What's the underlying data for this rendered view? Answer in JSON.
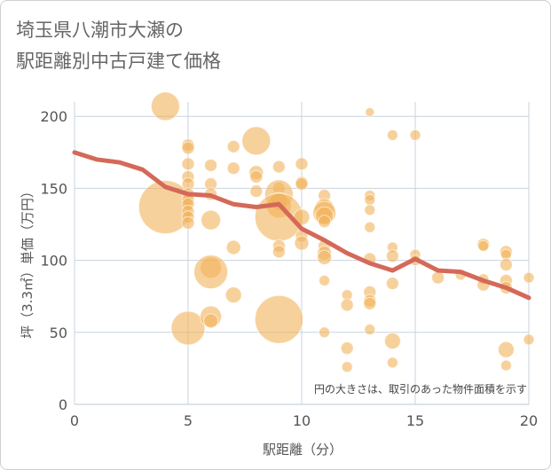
{
  "chart_data": {
    "type": "scatter",
    "title_lines": [
      "埼玉県八潮市大瀬の",
      "駅距離別中古戸建て価格"
    ],
    "xlabel": "駅距離（分）",
    "ylabel": "坪（3.3㎡）単価（万円）",
    "xlim": [
      0,
      20
    ],
    "ylim": [
      0,
      210
    ],
    "x_ticks": [
      0,
      5,
      10,
      15,
      20
    ],
    "y_ticks": [
      0,
      50,
      100,
      150,
      200
    ],
    "grid": true,
    "note": "円の大きさは、取引のあった物件面積を示す",
    "colors": {
      "bubble": "#f2b35a",
      "line": "#d4695a",
      "grid": "#c8d3de"
    },
    "points": [
      {
        "x": 4,
        "y": 207,
        "s": 16
      },
      {
        "x": 4,
        "y": 137,
        "s": 30
      },
      {
        "x": 5,
        "y": 180,
        "s": 7
      },
      {
        "x": 5,
        "y": 178,
        "s": 7
      },
      {
        "x": 5,
        "y": 167,
        "s": 7
      },
      {
        "x": 5,
        "y": 158,
        "s": 7
      },
      {
        "x": 5,
        "y": 153,
        "s": 7
      },
      {
        "x": 5,
        "y": 146,
        "s": 7
      },
      {
        "x": 5,
        "y": 142,
        "s": 7
      },
      {
        "x": 5,
        "y": 139,
        "s": 7
      },
      {
        "x": 5,
        "y": 134,
        "s": 7
      },
      {
        "x": 5,
        "y": 130,
        "s": 7
      },
      {
        "x": 5,
        "y": 126,
        "s": 7
      },
      {
        "x": 5,
        "y": 53,
        "s": 19
      },
      {
        "x": 6,
        "y": 166,
        "s": 7
      },
      {
        "x": 6,
        "y": 153,
        "s": 7
      },
      {
        "x": 6,
        "y": 146,
        "s": 7
      },
      {
        "x": 6,
        "y": 128,
        "s": 11
      },
      {
        "x": 6,
        "y": 95,
        "s": 12
      },
      {
        "x": 6,
        "y": 92,
        "s": 19
      },
      {
        "x": 6,
        "y": 61,
        "s": 12
      },
      {
        "x": 6,
        "y": 58,
        "s": 8
      },
      {
        "x": 7,
        "y": 179,
        "s": 7
      },
      {
        "x": 7,
        "y": 164,
        "s": 7
      },
      {
        "x": 7,
        "y": 109,
        "s": 8
      },
      {
        "x": 7,
        "y": 76,
        "s": 9
      },
      {
        "x": 8,
        "y": 183,
        "s": 16
      },
      {
        "x": 8,
        "y": 161,
        "s": 8
      },
      {
        "x": 8,
        "y": 158,
        "s": 7
      },
      {
        "x": 8,
        "y": 148,
        "s": 7
      },
      {
        "x": 9,
        "y": 165,
        "s": 7
      },
      {
        "x": 9,
        "y": 150,
        "s": 7
      },
      {
        "x": 9,
        "y": 146,
        "s": 16
      },
      {
        "x": 9,
        "y": 141,
        "s": 10
      },
      {
        "x": 9,
        "y": 138,
        "s": 14
      },
      {
        "x": 9,
        "y": 130,
        "s": 27
      },
      {
        "x": 9,
        "y": 110,
        "s": 7
      },
      {
        "x": 9,
        "y": 106,
        "s": 7
      },
      {
        "x": 9,
        "y": 59,
        "s": 27
      },
      {
        "x": 10,
        "y": 167,
        "s": 7
      },
      {
        "x": 10,
        "y": 154,
        "s": 7
      },
      {
        "x": 10,
        "y": 153,
        "s": 7
      },
      {
        "x": 10,
        "y": 130,
        "s": 9
      },
      {
        "x": 10,
        "y": 117,
        "s": 7
      },
      {
        "x": 10,
        "y": 112,
        "s": 8
      },
      {
        "x": 11,
        "y": 145,
        "s": 7
      },
      {
        "x": 11,
        "y": 136,
        "s": 11
      },
      {
        "x": 11,
        "y": 133,
        "s": 13
      },
      {
        "x": 11,
        "y": 131,
        "s": 10
      },
      {
        "x": 11,
        "y": 127,
        "s": 7
      },
      {
        "x": 11,
        "y": 110,
        "s": 7
      },
      {
        "x": 11,
        "y": 105,
        "s": 8
      },
      {
        "x": 11,
        "y": 102,
        "s": 8
      },
      {
        "x": 11,
        "y": 86,
        "s": 6
      },
      {
        "x": 11,
        "y": 50,
        "s": 6
      },
      {
        "x": 12,
        "y": 76,
        "s": 6
      },
      {
        "x": 12,
        "y": 69,
        "s": 7
      },
      {
        "x": 12,
        "y": 39,
        "s": 7
      },
      {
        "x": 12,
        "y": 26,
        "s": 6
      },
      {
        "x": 13,
        "y": 203,
        "s": 5
      },
      {
        "x": 13,
        "y": 145,
        "s": 6
      },
      {
        "x": 13,
        "y": 142,
        "s": 6
      },
      {
        "x": 13,
        "y": 135,
        "s": 6
      },
      {
        "x": 13,
        "y": 123,
        "s": 6
      },
      {
        "x": 13,
        "y": 101,
        "s": 7
      },
      {
        "x": 13,
        "y": 78,
        "s": 7
      },
      {
        "x": 13,
        "y": 72,
        "s": 7
      },
      {
        "x": 13,
        "y": 70,
        "s": 7
      },
      {
        "x": 13,
        "y": 52,
        "s": 6
      },
      {
        "x": 14,
        "y": 187,
        "s": 6
      },
      {
        "x": 14,
        "y": 109,
        "s": 6
      },
      {
        "x": 14,
        "y": 103,
        "s": 7
      },
      {
        "x": 14,
        "y": 84,
        "s": 7
      },
      {
        "x": 14,
        "y": 44,
        "s": 9
      },
      {
        "x": 14,
        "y": 29,
        "s": 6
      },
      {
        "x": 15,
        "y": 187,
        "s": 6
      },
      {
        "x": 15,
        "y": 104,
        "s": 6
      },
      {
        "x": 15,
        "y": 100,
        "s": 6
      },
      {
        "x": 16,
        "y": 88,
        "s": 7
      },
      {
        "x": 17,
        "y": 90,
        "s": 6
      },
      {
        "x": 18,
        "y": 111,
        "s": 7
      },
      {
        "x": 18,
        "y": 110,
        "s": 6
      },
      {
        "x": 18,
        "y": 87,
        "s": 6
      },
      {
        "x": 18,
        "y": 83,
        "s": 7
      },
      {
        "x": 19,
        "y": 106,
        "s": 7
      },
      {
        "x": 19,
        "y": 104,
        "s": 6
      },
      {
        "x": 19,
        "y": 97,
        "s": 7
      },
      {
        "x": 19,
        "y": 86,
        "s": 7
      },
      {
        "x": 19,
        "y": 81,
        "s": 7
      },
      {
        "x": 19,
        "y": 38,
        "s": 9
      },
      {
        "x": 19,
        "y": 27,
        "s": 6
      },
      {
        "x": 20,
        "y": 88,
        "s": 6
      },
      {
        "x": 20,
        "y": 45,
        "s": 6
      }
    ],
    "trend": {
      "x": [
        0,
        1,
        2,
        3,
        4,
        5,
        6,
        7,
        8,
        9,
        10,
        11,
        12,
        13,
        14,
        15,
        16,
        17,
        18,
        19,
        20
      ],
      "y": [
        175,
        170,
        168,
        163,
        151,
        146,
        145,
        139,
        137,
        139,
        122,
        114,
        105,
        98,
        93,
        101,
        93,
        92,
        86,
        81,
        74
      ]
    }
  }
}
